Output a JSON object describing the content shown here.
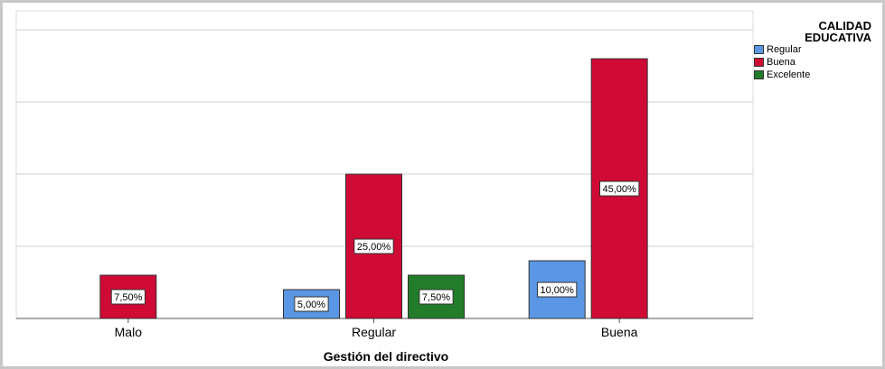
{
  "chart_data": {
    "type": "bar",
    "xlabel": "Gestión del directivo",
    "legend_title": "CALIDAD EDUCATIVA",
    "categories": [
      "Malo",
      "Regular",
      "Buena"
    ],
    "series": [
      {
        "name": "Regular",
        "color": "#5a96e3",
        "values": [
          null,
          5,
          10
        ],
        "value_labels": [
          null,
          "5,00%",
          "10,00%"
        ]
      },
      {
        "name": "Buena",
        "color": "#cf0a35",
        "values": [
          7.5,
          25,
          45
        ],
        "value_labels": [
          "7,50%",
          "25,00%",
          "45,00%"
        ]
      },
      {
        "name": "Excelente",
        "color": "#237c2a",
        "values": [
          null,
          7.5,
          null
        ],
        "value_labels": [
          null,
          "7,50%",
          null
        ]
      }
    ],
    "ylim": [
      0,
      53.3
    ],
    "ygrid": [
      12.5,
      25,
      37.5,
      50
    ],
    "grid": true,
    "legend": "right"
  }
}
